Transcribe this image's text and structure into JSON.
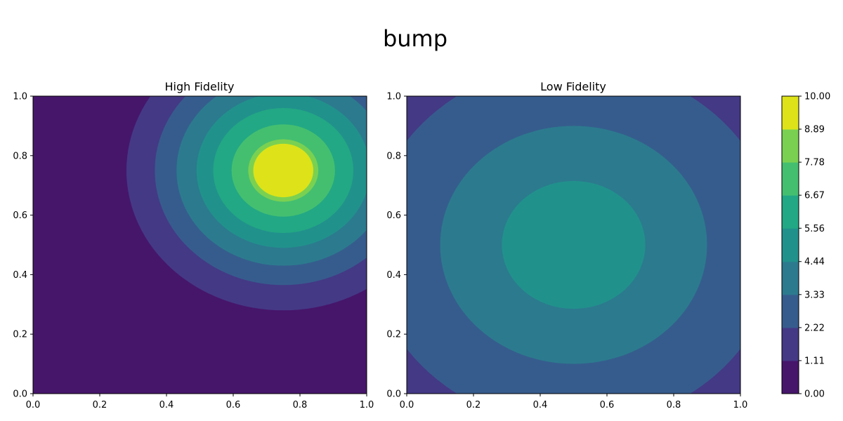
{
  "figure": {
    "suptitle": "bump"
  },
  "chart_data": [
    {
      "type": "heatmap",
      "subtype": "filled-contour",
      "title": "High Fidelity",
      "xlim": [
        0.0,
        1.0
      ],
      "ylim": [
        0.0,
        1.0
      ],
      "x_ticks": [
        "0.0",
        "0.2",
        "0.4",
        "0.6",
        "0.8",
        "1.0"
      ],
      "y_ticks": [
        "0.0",
        "0.2",
        "0.4",
        "0.6",
        "0.8",
        "1.0"
      ],
      "peak": {
        "x": 0.75,
        "y": 0.75,
        "value": 10.0
      },
      "level_radii": [
        {
          "level": 1.11,
          "radius": 0.47
        },
        {
          "level": 2.22,
          "radius": 0.385
        },
        {
          "level": 3.33,
          "radius": 0.32
        },
        {
          "level": 4.44,
          "radius": 0.26
        },
        {
          "level": 5.56,
          "radius": 0.21
        },
        {
          "level": 6.67,
          "radius": 0.155
        },
        {
          "level": 7.78,
          "radius": 0.105
        },
        {
          "level": 8.89,
          "radius": 0.09
        }
      ]
    },
    {
      "type": "heatmap",
      "subtype": "filled-contour",
      "title": "Low Fidelity",
      "xlim": [
        0.0,
        1.0
      ],
      "ylim": [
        0.0,
        1.0
      ],
      "x_ticks": [
        "0.0",
        "0.2",
        "0.4",
        "0.6",
        "0.8",
        "1.0"
      ],
      "y_ticks": [
        "0.0",
        "0.2",
        "0.4",
        "0.6",
        "0.8",
        "1.0"
      ],
      "peak": {
        "x": 0.5,
        "y": 0.5,
        "value": 5.0
      },
      "base_level": 1.11,
      "level_radii": [
        {
          "level": 2.22,
          "radius": 0.61
        },
        {
          "level": 3.33,
          "radius": 0.4
        },
        {
          "level": 4.44,
          "radius": 0.215
        }
      ]
    }
  ],
  "colorbar": {
    "levels": [
      "0.00",
      "1.11",
      "2.22",
      "3.33",
      "4.44",
      "5.56",
      "6.67",
      "7.78",
      "8.89",
      "10.00"
    ],
    "vmin": 0.0,
    "vmax": 10.0,
    "colors": [
      "#46166b",
      "#443985",
      "#365c8d",
      "#2c7a8e",
      "#21918c",
      "#22a884",
      "#44bf70",
      "#7ad151",
      "#dde318"
    ]
  }
}
